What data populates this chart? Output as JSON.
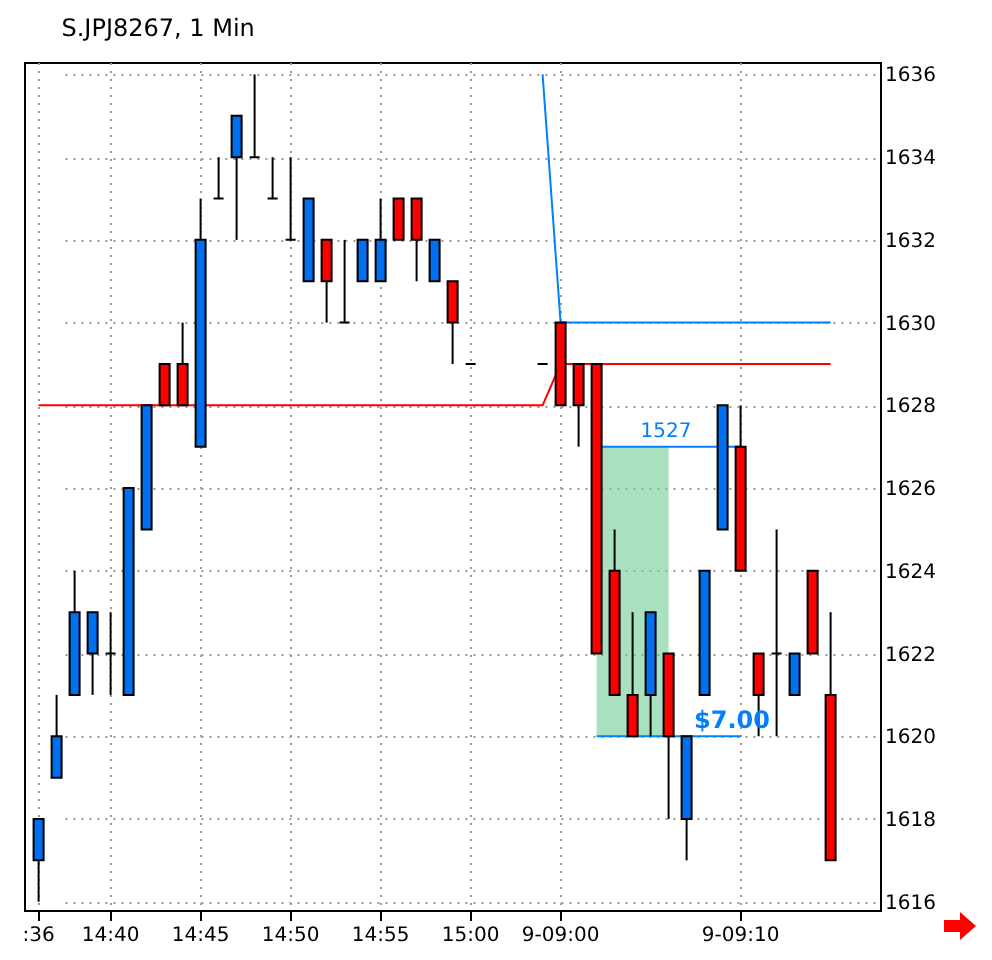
{
  "chart_data": {
    "type": "candlestick",
    "title": "S.JPJ8267, 1 Min",
    "categories": [
      ":36",
      null,
      null,
      null,
      "14:40",
      null,
      null,
      null,
      null,
      "14:45",
      null,
      null,
      null,
      null,
      "14:50",
      null,
      null,
      null,
      null,
      "14:55",
      null,
      null,
      null,
      null,
      "15:00",
      null,
      null,
      null,
      null,
      "9-09:00",
      null,
      null,
      null,
      null,
      null,
      null,
      null,
      null,
      null,
      "9-09:10",
      null,
      null,
      null,
      null,
      null
    ],
    "ohlc": [
      [
        1617,
        1618,
        1616,
        1618
      ],
      [
        1619,
        1621,
        1619,
        1620
      ],
      [
        1621,
        1624,
        1621,
        1623
      ],
      [
        1622,
        1623,
        1621,
        1623
      ],
      [
        1622,
        1623,
        1621,
        1622
      ],
      [
        1621,
        1626,
        1621,
        1626
      ],
      [
        1625,
        1628,
        1625,
        1628
      ],
      [
        1629,
        1629,
        1628,
        1628
      ],
      [
        1629,
        1630,
        1628,
        1628
      ],
      [
        1627,
        1633,
        1627,
        1632
      ],
      [
        1633,
        1634,
        1633,
        1633
      ],
      [
        1634,
        1635,
        1632,
        1635
      ],
      [
        1634,
        1636,
        1634,
        1634
      ],
      [
        1633,
        1634,
        1633,
        1633
      ],
      [
        1632,
        1634,
        1632,
        1632
      ],
      [
        1631,
        1633,
        1631,
        1633
      ],
      [
        1632,
        1632,
        1630,
        1631
      ],
      [
        1630,
        1632,
        1630,
        1630
      ],
      [
        1631,
        1632,
        1631,
        1632
      ],
      [
        1631,
        1633,
        1631,
        1632
      ],
      [
        1633,
        1633,
        1632,
        1632
      ],
      [
        1633,
        1633,
        1631,
        1632
      ],
      [
        1631,
        1632,
        1631,
        1632
      ],
      [
        1631,
        1631,
        1629,
        1630
      ],
      [
        1629,
        1629,
        1629,
        1629
      ],
      null,
      null,
      null,
      [
        1629,
        1629,
        1629,
        1629
      ],
      [
        1630,
        1630,
        1628,
        1628
      ],
      [
        1629,
        1629,
        1627,
        1628
      ],
      [
        1629,
        1629,
        1622,
        1622
      ],
      [
        1624,
        1625,
        1621,
        1621
      ],
      [
        1621,
        1623,
        1620,
        1620
      ],
      [
        1621,
        1623,
        1620,
        1623
      ],
      [
        1622,
        1622,
        1618,
        1620
      ],
      [
        1618,
        1620,
        1617,
        1620
      ],
      [
        1621,
        1624,
        1621,
        1624
      ],
      [
        1625,
        1628,
        1625,
        1628
      ],
      [
        1627,
        1628,
        1624,
        1624
      ],
      [
        1622,
        1622,
        1620,
        1621
      ],
      [
        1622,
        1625,
        1620,
        1622
      ],
      [
        1621,
        1622,
        1621,
        1622
      ],
      [
        1624,
        1624,
        1622,
        1622
      ],
      [
        1621,
        1623,
        1617,
        1617
      ]
    ],
    "colors": [
      "#0070f0",
      "#0070f0",
      "#0070f0",
      "#0070f0",
      "#000000",
      "#0070f0",
      "#0070f0",
      "#ff0000",
      "#ff0000",
      "#0070f0",
      "#000000",
      "#0070f0",
      "#000000",
      "#000000",
      "#000000",
      "#0070f0",
      "#ff0000",
      "#000000",
      "#0070f0",
      "#0070f0",
      "#ff0000",
      "#ff0000",
      "#0070f0",
      "#ff0000",
      "#000000",
      null,
      null,
      null,
      "#000000",
      "#ff0000",
      "#ff0000",
      "#ff0000",
      "#ff0000",
      "#ff0000",
      "#0070f0",
      "#ff0000",
      "#0070f0",
      "#0070f0",
      "#0070f0",
      "#ff0000",
      "#ff0000",
      "#000000",
      "#0070f0",
      "#ff0000",
      "#ff0000"
    ],
    "series": [
      {
        "type": "line",
        "color": "#ff0000",
        "values": [
          1628,
          1628,
          1628,
          1628,
          1628,
          1628,
          1628,
          1628,
          1628,
          1628,
          1628,
          1628,
          1628,
          1628,
          1628,
          1628,
          1628,
          1628,
          1628,
          1628,
          1628,
          1628,
          1628,
          1628,
          1628,
          1628,
          1628,
          1628,
          1628,
          1629,
          1629,
          1629,
          1629,
          1629,
          1629,
          1629,
          1629,
          1629,
          1629,
          1629,
          1629,
          1629,
          1629,
          1629,
          1629
        ]
      },
      {
        "type": "line",
        "color": "#0080ff",
        "values": [
          null,
          null,
          null,
          null,
          null,
          null,
          null,
          null,
          null,
          null,
          null,
          null,
          null,
          null,
          null,
          null,
          null,
          null,
          null,
          null,
          null,
          null,
          null,
          null,
          null,
          null,
          null,
          null,
          1636,
          1630,
          1630,
          1630,
          1630,
          1630,
          1630,
          1630,
          1630,
          1630,
          1630,
          1630,
          1630,
          1630,
          1630,
          1630,
          1630
        ]
      },
      {
        "type": "line",
        "color": "#0080ff",
        "values": [
          null,
          null,
          null,
          null,
          null,
          null,
          null,
          null,
          null,
          null,
          null,
          null,
          null,
          null,
          null,
          null,
          null,
          null,
          null,
          null,
          null,
          null,
          null,
          null,
          null,
          null,
          null,
          null,
          null,
          null,
          null,
          1627,
          1627,
          1627,
          1627,
          1627,
          1627,
          1627,
          1627,
          1627,
          null,
          null,
          null,
          null,
          null
        ]
      },
      {
        "type": "line",
        "color": "#0080ff",
        "values": [
          null,
          null,
          null,
          null,
          null,
          null,
          null,
          null,
          null,
          null,
          null,
          null,
          null,
          null,
          null,
          null,
          null,
          null,
          null,
          null,
          null,
          null,
          null,
          null,
          null,
          null,
          null,
          null,
          null,
          null,
          null,
          1620,
          1620,
          1620,
          1620,
          1620,
          1620,
          1620,
          1620,
          1620,
          null,
          null,
          null,
          null,
          null
        ]
      },
      {
        "type": "line",
        "color": "#70cc94",
        "values": [
          null,
          null,
          null,
          null,
          null,
          null,
          null,
          null,
          null,
          null,
          null,
          null,
          null,
          null,
          null,
          null,
          null,
          null,
          null,
          null,
          null,
          null,
          null,
          null,
          null,
          null,
          null,
          null,
          null,
          null,
          null,
          null,
          null,
          null,
          null,
          null,
          null,
          null,
          null,
          null,
          null,
          null,
          null,
          null,
          null
        ],
        "lower": [
          null,
          null,
          null,
          null,
          null,
          null,
          null,
          null,
          null,
          null,
          null,
          null,
          null,
          null,
          null,
          null,
          null,
          null,
          null,
          null,
          null,
          null,
          null,
          null,
          null,
          null,
          null,
          null,
          null,
          null,
          null,
          1620,
          1620,
          1620,
          1620,
          1620,
          null,
          null,
          null,
          null,
          null,
          null,
          null,
          null,
          null
        ],
        "upper": [
          null,
          null,
          null,
          null,
          null,
          null,
          null,
          null,
          null,
          null,
          null,
          null,
          null,
          null,
          null,
          null,
          null,
          null,
          null,
          null,
          null,
          null,
          null,
          null,
          null,
          null,
          null,
          null,
          null,
          null,
          null,
          1627,
          1627,
          1627,
          1627,
          1627,
          null,
          null,
          null,
          null,
          null,
          null,
          null,
          null,
          null
        ]
      }
    ],
    "annotations": [
      {
        "text": "1527",
        "y": 1627
      },
      {
        "text": "$7.00",
        "y": 1620
      }
    ],
    "ylim": [
      1615.8,
      1636.3
    ],
    "yticks": [
      1616,
      1618,
      1620,
      1622,
      1624,
      1626,
      1628,
      1630,
      1632,
      1634,
      1636
    ],
    "grid": true
  }
}
